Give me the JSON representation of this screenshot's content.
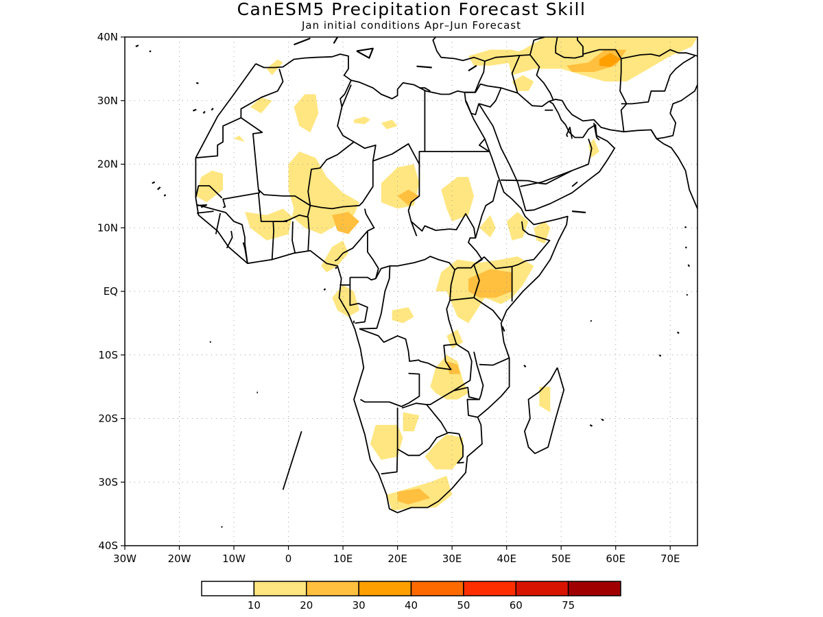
{
  "title": "CanESM5 Precipitation Forecast Skill",
  "subtitle": "Jan initial conditions  Apr–Jun Forecast",
  "axes": {
    "lat_ticks": [
      {
        "value": 40,
        "label": "40N"
      },
      {
        "value": 30,
        "label": "30N"
      },
      {
        "value": 20,
        "label": "20N"
      },
      {
        "value": 10,
        "label": "10N"
      },
      {
        "value": 0,
        "label": "EQ"
      },
      {
        "value": -10,
        "label": "10S"
      },
      {
        "value": -20,
        "label": "20S"
      },
      {
        "value": -30,
        "label": "30S"
      },
      {
        "value": -40,
        "label": "40S"
      }
    ],
    "lon_ticks": [
      {
        "value": -30,
        "label": "30W"
      },
      {
        "value": -20,
        "label": "20W"
      },
      {
        "value": -10,
        "label": "10W"
      },
      {
        "value": 0,
        "label": "0"
      },
      {
        "value": 10,
        "label": "10E"
      },
      {
        "value": 20,
        "label": "20E"
      },
      {
        "value": 30,
        "label": "30E"
      },
      {
        "value": 40,
        "label": "40E"
      },
      {
        "value": 50,
        "label": "50E"
      },
      {
        "value": 60,
        "label": "60E"
      },
      {
        "value": 70,
        "label": "70E"
      }
    ],
    "lon_range": [
      -30,
      75
    ],
    "lat_range": [
      -40,
      40
    ],
    "grid": true
  },
  "colorbar": {
    "colors": [
      "#ffffff",
      "#ffe680",
      "#ffbf3f",
      "#ff9f00",
      "#ff6a00",
      "#ff2e00",
      "#d81400",
      "#a00000"
    ],
    "labels": [
      "10",
      "20",
      "30",
      "40",
      "50",
      "60",
      "75"
    ]
  },
  "regions": [
    {
      "level": 1,
      "pts": [
        [
          -7,
          29
        ],
        [
          -5,
          30.5
        ],
        [
          -3,
          30
        ],
        [
          -5,
          28
        ]
      ]
    },
    {
      "level": 1,
      "pts": [
        [
          1,
          29
        ],
        [
          3,
          31
        ],
        [
          5,
          31
        ],
        [
          5.5,
          28
        ],
        [
          4,
          25
        ],
        [
          2,
          26
        ]
      ]
    },
    {
      "level": 1,
      "pts": [
        [
          -4,
          35
        ],
        [
          -2,
          36.5
        ],
        [
          -1,
          36
        ],
        [
          -3,
          34
        ]
      ]
    },
    {
      "level": 1,
      "pts": [
        [
          12,
          27
        ],
        [
          14,
          27.5
        ],
        [
          15,
          27
        ],
        [
          14,
          26.3
        ],
        [
          12,
          26.5
        ]
      ]
    },
    {
      "level": 1,
      "pts": [
        [
          17,
          26.5
        ],
        [
          19,
          27
        ],
        [
          20,
          26
        ],
        [
          18,
          25.5
        ]
      ]
    },
    {
      "level": 1,
      "pts": [
        [
          -10,
          24
        ],
        [
          -9,
          24.5
        ],
        [
          -8,
          23.5
        ]
      ]
    },
    {
      "level": 1,
      "pts": [
        [
          -16,
          18
        ],
        [
          -14,
          19
        ],
        [
          -12,
          18.5
        ],
        [
          -12,
          16
        ],
        [
          -15,
          14
        ],
        [
          -17,
          15
        ]
      ]
    },
    {
      "level": 1,
      "pts": [
        [
          0,
          20
        ],
        [
          2,
          22
        ],
        [
          5,
          21
        ],
        [
          7,
          18
        ],
        [
          10,
          15.5
        ],
        [
          13,
          14
        ],
        [
          12,
          12
        ],
        [
          9,
          10.5
        ],
        [
          6,
          9
        ],
        [
          3,
          10
        ],
        [
          -1,
          13
        ],
        [
          -4,
          12
        ],
        [
          -8,
          12.5
        ],
        [
          -7,
          10
        ],
        [
          -4,
          8
        ],
        [
          -2,
          8.5
        ],
        [
          0,
          9
        ],
        [
          1,
          13
        ],
        [
          0,
          16
        ]
      ]
    },
    {
      "level": 1,
      "pts": [
        [
          17,
          17
        ],
        [
          20,
          19.5
        ],
        [
          23,
          20
        ],
        [
          24,
          17
        ],
        [
          23,
          13.5
        ],
        [
          20,
          13
        ],
        [
          17,
          14
        ]
      ]
    },
    {
      "level": 1,
      "pts": [
        [
          28,
          16
        ],
        [
          31,
          18
        ],
        [
          33,
          18
        ],
        [
          34,
          15
        ],
        [
          33,
          12
        ],
        [
          30,
          11
        ],
        [
          29,
          13
        ]
      ]
    },
    {
      "level": 1,
      "pts": [
        [
          35,
          10
        ],
        [
          37,
          12
        ],
        [
          38,
          10
        ],
        [
          37,
          8.5
        ]
      ]
    },
    {
      "level": 1,
      "pts": [
        [
          40,
          11
        ],
        [
          42,
          12.5
        ],
        [
          44,
          11
        ],
        [
          43,
          8.5
        ],
        [
          41,
          8
        ]
      ]
    },
    {
      "level": 1,
      "pts": [
        [
          45,
          10
        ],
        [
          47,
          11
        ],
        [
          48,
          10
        ],
        [
          47,
          7.5
        ],
        [
          45.5,
          8
        ]
      ]
    },
    {
      "level": 1,
      "pts": [
        [
          28,
          3
        ],
        [
          31,
          5
        ],
        [
          35,
          4.5
        ],
        [
          39,
          5
        ],
        [
          42,
          5.5
        ],
        [
          45,
          4
        ],
        [
          43,
          1
        ],
        [
          41,
          -1
        ],
        [
          39,
          -2
        ],
        [
          36,
          -1
        ],
        [
          33,
          -5
        ],
        [
          31,
          -4
        ],
        [
          29,
          0
        ],
        [
          27,
          0
        ]
      ]
    },
    {
      "level": 1,
      "pts": [
        [
          19,
          -3
        ],
        [
          22,
          -2.5
        ],
        [
          23,
          -4
        ],
        [
          21,
          -5
        ],
        [
          19,
          -4.5
        ]
      ]
    },
    {
      "level": 1,
      "pts": [
        [
          8,
          -1
        ],
        [
          10,
          1
        ],
        [
          12,
          0
        ],
        [
          13,
          -3
        ],
        [
          11,
          -4
        ],
        [
          9,
          -3
        ]
      ]
    },
    {
      "level": 1,
      "pts": [
        [
          6,
          4
        ],
        [
          8,
          7
        ],
        [
          10,
          8
        ],
        [
          11,
          6
        ],
        [
          9,
          4
        ],
        [
          7,
          3
        ]
      ]
    },
    {
      "level": 1,
      "pts": [
        [
          29,
          -7
        ],
        [
          31,
          -6
        ],
        [
          32,
          -8
        ],
        [
          30,
          -9
        ]
      ]
    },
    {
      "level": 1,
      "pts": [
        [
          27,
          -12
        ],
        [
          29,
          -10
        ],
        [
          31,
          -11
        ],
        [
          32,
          -14
        ],
        [
          33,
          -16
        ],
        [
          31,
          -17
        ],
        [
          29,
          -17
        ],
        [
          27,
          -16
        ],
        [
          26,
          -15
        ]
      ]
    },
    {
      "level": 1,
      "pts": [
        [
          46,
          -15
        ],
        [
          48,
          -15
        ],
        [
          48,
          -19
        ],
        [
          46,
          -18
        ]
      ]
    },
    {
      "level": 1,
      "pts": [
        [
          16,
          -21
        ],
        [
          20,
          -21
        ],
        [
          21,
          -23
        ],
        [
          20,
          -26
        ],
        [
          17,
          -26.5
        ],
        [
          15,
          -24
        ]
      ]
    },
    {
      "level": 1,
      "pts": [
        [
          21,
          -19
        ],
        [
          24,
          -19.5
        ],
        [
          23,
          -22
        ],
        [
          21,
          -22
        ]
      ]
    },
    {
      "level": 1,
      "pts": [
        [
          27,
          -24
        ],
        [
          29,
          -22.5
        ],
        [
          32,
          -23
        ],
        [
          32,
          -26
        ],
        [
          30,
          -28
        ],
        [
          27,
          -28
        ],
        [
          25,
          -26
        ]
      ]
    },
    {
      "level": 1,
      "pts": [
        [
          18,
          -32
        ],
        [
          22,
          -31
        ],
        [
          26,
          -30
        ],
        [
          29,
          -29
        ],
        [
          30,
          -32
        ],
        [
          27,
          -34
        ],
        [
          23,
          -34
        ],
        [
          19,
          -34.5
        ]
      ]
    },
    {
      "level": 1,
      "pts": [
        [
          55,
          23
        ],
        [
          56,
          24
        ],
        [
          57,
          22
        ],
        [
          55.5,
          21
        ]
      ]
    },
    {
      "level": 1,
      "pts": [
        [
          41,
          34
        ],
        [
          45,
          35
        ],
        [
          50,
          35
        ],
        [
          54,
          34
        ],
        [
          58,
          33
        ],
        [
          62,
          33
        ],
        [
          66,
          35
        ],
        [
          70,
          37
        ],
        [
          74,
          38.5
        ],
        [
          75,
          40
        ],
        [
          53,
          40
        ],
        [
          47,
          40
        ],
        [
          43,
          38
        ],
        [
          40,
          37
        ]
      ]
    },
    {
      "level": 1,
      "pts": [
        [
          33,
          37
        ],
        [
          37,
          38
        ],
        [
          41,
          38
        ],
        [
          43,
          37.5
        ],
        [
          41,
          36
        ],
        [
          37,
          35.5
        ],
        [
          34,
          35.5
        ]
      ]
    },
    {
      "level": 1,
      "pts": [
        [
          41,
          33
        ],
        [
          43,
          34
        ],
        [
          45,
          33
        ],
        [
          44,
          31.5
        ],
        [
          42,
          31.5
        ]
      ]
    },
    {
      "level": 2,
      "pts": [
        [
          20,
          15
        ],
        [
          22,
          16
        ],
        [
          24,
          15
        ],
        [
          22,
          13.5
        ]
      ]
    },
    {
      "level": 2,
      "pts": [
        [
          8,
          12
        ],
        [
          11,
          12.5
        ],
        [
          13,
          11
        ],
        [
          11,
          9
        ],
        [
          9,
          9.5
        ]
      ]
    },
    {
      "level": 2,
      "pts": [
        [
          33,
          2
        ],
        [
          37,
          3.5
        ],
        [
          41,
          3
        ],
        [
          41,
          0
        ],
        [
          38,
          -1
        ],
        [
          35,
          -1
        ],
        [
          33,
          0
        ]
      ]
    },
    {
      "level": 2,
      "pts": [
        [
          51,
          35.5
        ],
        [
          55,
          36
        ],
        [
          58,
          38
        ],
        [
          62,
          38
        ],
        [
          60,
          35.5
        ],
        [
          56,
          34.5
        ],
        [
          52,
          34.5
        ]
      ]
    },
    {
      "level": 2,
      "pts": [
        [
          29,
          -11
        ],
        [
          31,
          -11.5
        ],
        [
          31.5,
          -13
        ],
        [
          29.5,
          -13
        ]
      ]
    },
    {
      "level": 2,
      "pts": [
        [
          20,
          -31.5
        ],
        [
          24,
          -31
        ],
        [
          26,
          -32.5
        ],
        [
          22,
          -33.5
        ],
        [
          20,
          -33
        ]
      ]
    },
    {
      "level": 3,
      "pts": [
        [
          57,
          36.5
        ],
        [
          59,
          37.5
        ],
        [
          61,
          36.5
        ],
        [
          59,
          35.3
        ],
        [
          57,
          35.5
        ]
      ]
    }
  ]
}
